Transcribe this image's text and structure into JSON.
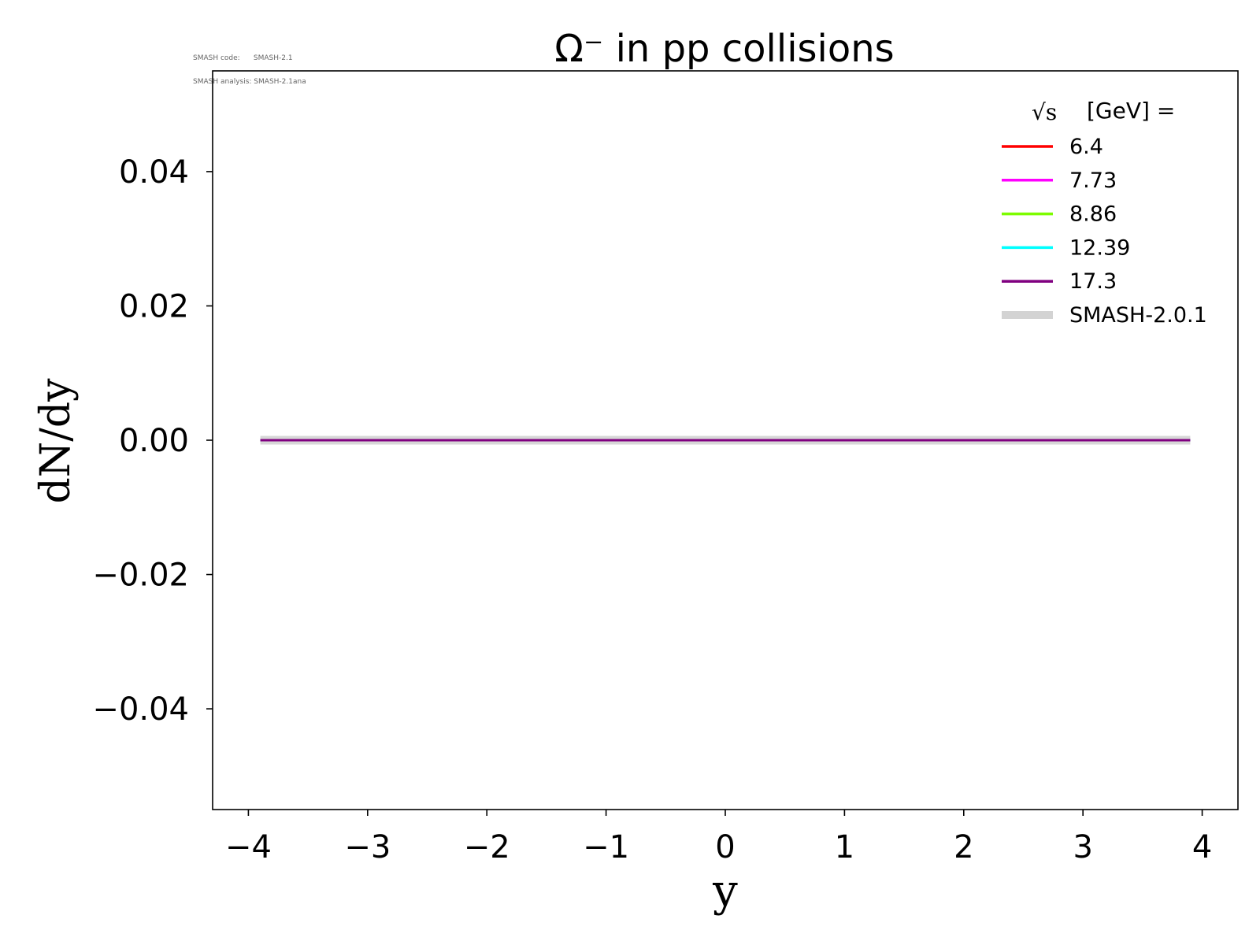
{
  "info": {
    "line1": "SMASH code:      SMASH-2.1",
    "line2": "SMASH analysis: SMASH-2.1ana"
  },
  "chart_data": {
    "type": "line",
    "title": "Ω⁻ in pp collisions",
    "xlabel": "y",
    "ylabel": "dN/dy",
    "xlim": [
      -4.3,
      4.3
    ],
    "ylim": [
      -0.055,
      0.055
    ],
    "x_ticks": [
      -4,
      -3,
      -2,
      -1,
      0,
      1,
      2,
      3,
      4
    ],
    "x_tick_labels": [
      "−4",
      "−3",
      "−2",
      "−1",
      "0",
      "1",
      "2",
      "3",
      "4"
    ],
    "y_ticks": [
      -0.04,
      -0.02,
      0.0,
      0.02,
      0.04
    ],
    "y_tick_labels": [
      "−0.04",
      "−0.02",
      "0.00",
      "0.02",
      "0.04"
    ],
    "grid": false,
    "legend": {
      "placement": "top-right",
      "title_prefix": "√s",
      "title_suffix": "[GeV] ="
    },
    "series": [
      {
        "name": "6.4",
        "color": "#ff0000",
        "x": [
          -3.9,
          3.9
        ],
        "y": [
          0,
          0
        ]
      },
      {
        "name": "7.73",
        "color": "#ff00ff",
        "x": [
          -3.9,
          3.9
        ],
        "y": [
          0,
          0
        ]
      },
      {
        "name": "8.86",
        "color": "#7cfc00",
        "x": [
          -3.9,
          3.9
        ],
        "y": [
          0,
          0
        ]
      },
      {
        "name": "12.39",
        "color": "#00ffff",
        "x": [
          -3.9,
          3.9
        ],
        "y": [
          0,
          0
        ]
      },
      {
        "name": "17.3",
        "color": "#800080",
        "x": [
          -3.9,
          3.9
        ],
        "y": [
          0,
          0
        ]
      },
      {
        "name": "SMASH-2.0.1",
        "color": "#d3d3d3",
        "thick": true,
        "x": [
          -3.9,
          3.9
        ],
        "y": [
          0,
          0
        ]
      }
    ]
  }
}
